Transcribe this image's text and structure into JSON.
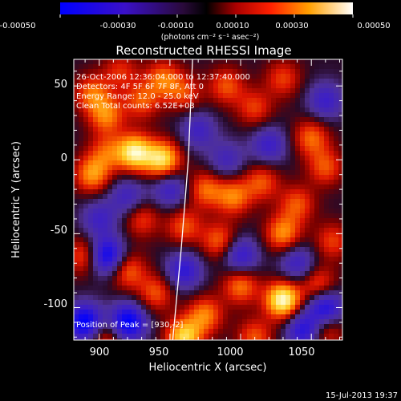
{
  "colorbar": {
    "tick_labels": [
      "-0.00050",
      "-0.00030",
      "-0.00010",
      "0.00010",
      "0.00030",
      "0.00050"
    ],
    "range": [
      -0.0005,
      0.0005
    ],
    "unit_label": "(photons cm⁻² s⁻¹ asec⁻²)"
  },
  "chart_data": {
    "type": "heatmap",
    "title": "Reconstructed RHESSI Image",
    "xlabel": "Heliocentric X (arcsec)",
    "ylabel": "Heliocentric Y (arcsec)",
    "xlim": [
      882,
      1072
    ],
    "ylim": [
      -122,
      68
    ],
    "xticks": [
      900,
      950,
      1000,
      1050
    ],
    "yticks": [
      50,
      0,
      -50,
      -100
    ],
    "annotations": [
      "26-Oct-2006 12:36:04.000 to 12:37:40.000",
      "Detectors: 4F 5F 6F 7F 8F, Att 0",
      "Energy Range: 12.0 - 25.0 keV",
      "Clean    Total counts: 6.52E+03"
    ],
    "peak_label": "Position of Peak = [930,-2]",
    "peak": [
      930,
      -2
    ],
    "hot_spots": [
      [
        895,
        45,
        0.5
      ],
      [
        905,
        30,
        0.55
      ],
      [
        930,
        40,
        0.45
      ],
      [
        945,
        55,
        0.5
      ],
      [
        915,
        60,
        0.35
      ],
      [
        925,
        5,
        0.9
      ],
      [
        945,
        0,
        0.85
      ],
      [
        895,
        -10,
        0.6
      ],
      [
        905,
        5,
        0.4
      ],
      [
        960,
        45,
        0.4
      ],
      [
        990,
        50,
        0.45
      ],
      [
        1010,
        35,
        0.4
      ],
      [
        1030,
        55,
        0.4
      ],
      [
        1050,
        15,
        0.5
      ],
      [
        1060,
        -5,
        0.45
      ],
      [
        975,
        -20,
        0.5
      ],
      [
        995,
        -25,
        0.55
      ],
      [
        1015,
        -15,
        0.45
      ],
      [
        1040,
        -30,
        0.45
      ],
      [
        1030,
        -50,
        0.6
      ],
      [
        985,
        -55,
        0.5
      ],
      [
        960,
        -45,
        0.45
      ],
      [
        1000,
        -85,
        0.55
      ],
      [
        1030,
        -95,
        1.0
      ],
      [
        1055,
        -85,
        0.5
      ],
      [
        960,
        -120,
        0.8
      ],
      [
        975,
        -105,
        0.55
      ],
      [
        890,
        -65,
        0.5
      ],
      [
        920,
        -75,
        0.5
      ],
      [
        940,
        -90,
        0.45
      ],
      [
        930,
        -40,
        0.4
      ],
      [
        1065,
        -55,
        0.4
      ],
      [
        1010,
        -120,
        0.45
      ],
      [
        905,
        -120,
        0.45
      ],
      [
        1060,
        -115,
        0.45
      ]
    ],
    "cold_spots": [
      [
        905,
        -65,
        0.9
      ],
      [
        890,
        -110,
        0.95
      ],
      [
        920,
        -110,
        0.95
      ],
      [
        960,
        -75,
        0.6
      ],
      [
        1000,
        -65,
        0.6
      ],
      [
        1060,
        -100,
        0.8
      ],
      [
        1045,
        -115,
        0.7
      ],
      [
        950,
        -20,
        0.5
      ],
      [
        1020,
        10,
        0.5
      ],
      [
        1060,
        40,
        0.5
      ],
      [
        970,
        20,
        0.45
      ],
      [
        920,
        -25,
        0.45
      ],
      [
        1040,
        -70,
        0.5
      ],
      [
        990,
        0,
        0.4
      ],
      [
        900,
        -40,
        0.45
      ]
    ],
    "limb_line": [
      [
        952,
        -122
      ],
      [
        958,
        -60
      ],
      [
        963,
        0
      ],
      [
        966,
        68
      ]
    ]
  },
  "timestamp": "15-Jul-2013 19:37"
}
